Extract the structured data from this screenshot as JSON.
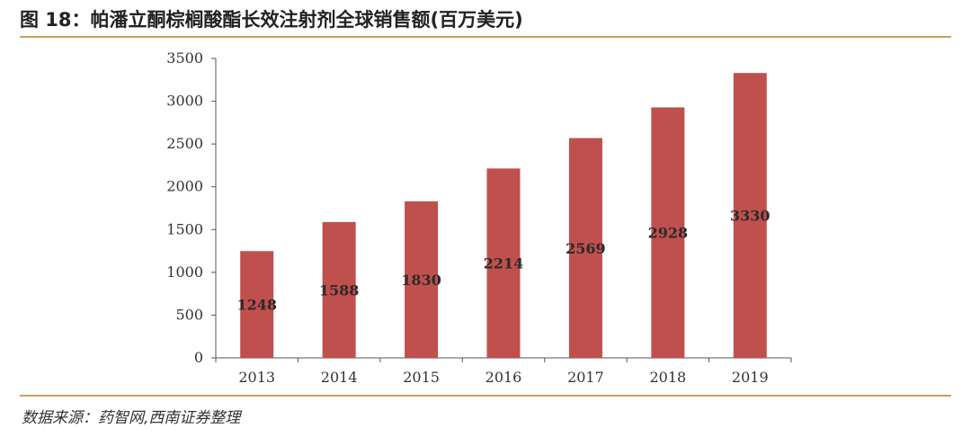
{
  "header": {
    "title": "图 18：帕潘立酮棕榈酸酯长效注射剂全球销售额(百万美元)"
  },
  "footer": {
    "source": "数据来源：药智网,西南证券整理"
  },
  "colors": {
    "bar": "#c0504d",
    "axis": "#555555",
    "rule": "#c9a15a"
  },
  "chart_data": {
    "type": "bar",
    "title": "帕潘立酮棕榈酸酯长效注射剂全球销售额(百万美元)",
    "categories": [
      "2013",
      "2014",
      "2015",
      "2016",
      "2017",
      "2018",
      "2019"
    ],
    "values": [
      1248,
      1588,
      1830,
      2214,
      2569,
      2928,
      3330
    ],
    "data_labels": [
      "1248",
      "1588",
      "1830",
      "2214",
      "2569",
      "2928",
      "3330"
    ],
    "yticks": [
      "0",
      "500",
      "1000",
      "1500",
      "2000",
      "2500",
      "3000",
      "3500"
    ],
    "ylim": [
      0,
      3500
    ],
    "xlabel": "",
    "ylabel": "",
    "grid": false,
    "legend": "none"
  }
}
